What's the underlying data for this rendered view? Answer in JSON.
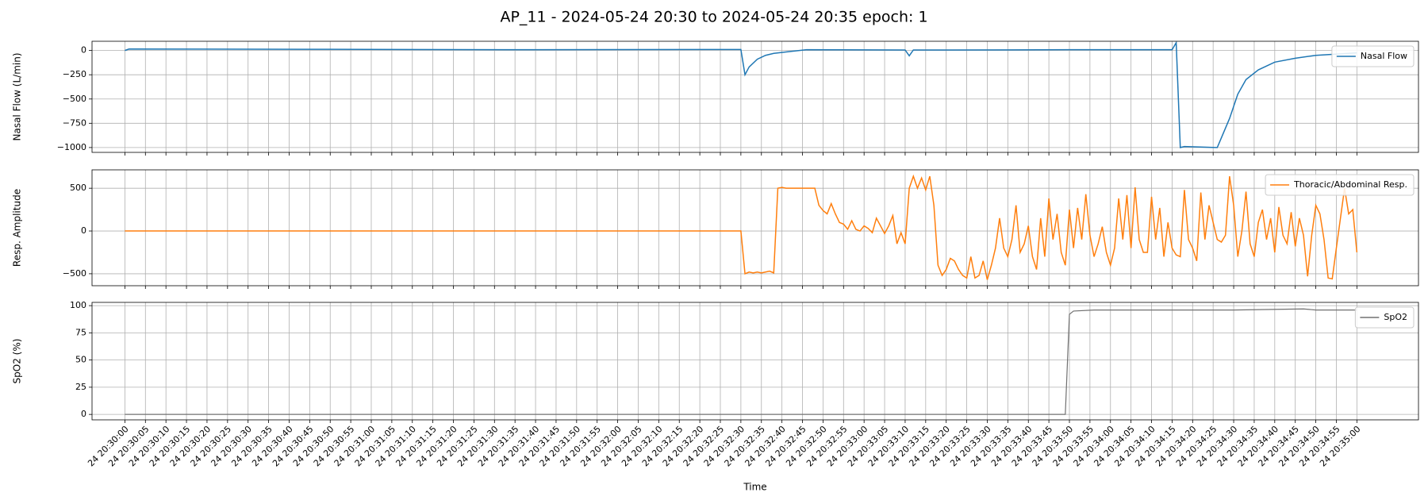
{
  "title": "AP_11 - 2024-05-24 20:30 to 2024-05-24 20:35 epoch: 1",
  "xlabel": "Time",
  "xlim": [
    "24 20:29:52",
    "24 20:35:15"
  ],
  "xticks": [
    "24 20:30:00",
    "24 20:30:05",
    "24 20:30:10",
    "24 20:30:15",
    "24 20:30:20",
    "24 20:30:25",
    "24 20:30:30",
    "24 20:30:35",
    "24 20:30:40",
    "24 20:30:45",
    "24 20:30:50",
    "24 20:30:55",
    "24 20:31:00",
    "24 20:31:05",
    "24 20:31:10",
    "24 20:31:15",
    "24 20:31:20",
    "24 20:31:25",
    "24 20:31:30",
    "24 20:31:35",
    "24 20:31:40",
    "24 20:31:45",
    "24 20:31:50",
    "24 20:31:55",
    "24 20:32:00",
    "24 20:32:05",
    "24 20:32:10",
    "24 20:32:15",
    "24 20:32:20",
    "24 20:32:25",
    "24 20:32:30",
    "24 20:32:35",
    "24 20:32:40",
    "24 20:32:45",
    "24 20:32:50",
    "24 20:32:55",
    "24 20:33:00",
    "24 20:33:05",
    "24 20:33:10",
    "24 20:33:15",
    "24 20:33:20",
    "24 20:33:25",
    "24 20:33:30",
    "24 20:33:35",
    "24 20:33:40",
    "24 20:33:45",
    "24 20:33:50",
    "24 20:33:55",
    "24 20:34:00",
    "24 20:34:05",
    "24 20:34:10",
    "24 20:34:15",
    "24 20:34:20",
    "24 20:34:25",
    "24 20:34:30",
    "24 20:34:35",
    "24 20:34:40",
    "24 20:34:45",
    "24 20:34:50",
    "24 20:34:55",
    "24 20:35:00"
  ],
  "chart_data": [
    {
      "type": "line",
      "ylabel": "Nasal Flow (L/min)",
      "ylim": [
        -1050,
        95
      ],
      "yticks": [
        0,
        {
          "value": -250,
          "label": "−250"
        },
        {
          "value": -500,
          "label": "−500"
        },
        {
          "value": -750,
          "label": "−750"
        },
        {
          "value": -1000,
          "label": "−1000"
        }
      ],
      "grid": true,
      "legend": "upper right",
      "x": [
        "24 20:30:00",
        "24 20:30:01",
        "24 20:30:50",
        "24 20:31:40",
        "24 20:32:30",
        "24 20:32:31",
        "24 20:32:32",
        "24 20:32:34",
        "24 20:32:36",
        "24 20:32:38",
        "24 20:32:42",
        "24 20:32:46",
        "24 20:33:10",
        "24 20:33:11",
        "24 20:33:12",
        "24 20:33:20",
        "24 20:33:50",
        "24 20:34:15",
        "24 20:34:16",
        "24 20:34:17",
        "24 20:34:18",
        "24 20:34:26",
        "24 20:34:27",
        "24 20:34:29",
        "24 20:34:31",
        "24 20:34:33",
        "24 20:34:36",
        "24 20:34:40",
        "24 20:34:45",
        "24 20:34:50",
        "24 20:34:54",
        "24 20:35:00"
      ],
      "series": [
        {
          "name": "Nasal Flow",
          "color": "#1f77b4",
          "values": [
            0,
            15,
            12,
            8,
            10,
            -250,
            -170,
            -90,
            -50,
            -30,
            -10,
            8,
            5,
            -55,
            5,
            5,
            8,
            8,
            80,
            -1000,
            -990,
            -1000,
            -900,
            -700,
            -450,
            -300,
            -200,
            -120,
            -80,
            -50,
            -40,
            -25
          ]
        }
      ]
    },
    {
      "type": "line",
      "ylabel": "Resp. Amplitude",
      "ylim": [
        -640,
        715
      ],
      "yticks": [
        {
          "value": -500,
          "label": "−500"
        },
        0,
        500
      ],
      "grid": true,
      "legend": "upper right",
      "x": [
        "24 20:30:00",
        "24 20:32:30",
        "24 20:32:31",
        "24 20:32:32",
        "24 20:32:33",
        "24 20:32:34",
        "24 20:32:35",
        "24 20:32:36",
        "24 20:32:37",
        "24 20:32:38",
        "24 20:32:39",
        "24 20:32:40",
        "24 20:32:41",
        "24 20:32:42",
        "24 20:32:43",
        "24 20:32:44",
        "24 20:32:45",
        "24 20:32:46",
        "24 20:32:47",
        "24 20:32:48",
        "24 20:32:49",
        "24 20:32:50",
        "24 20:32:51",
        "24 20:32:52",
        "24 20:32:53",
        "24 20:32:54",
        "24 20:32:55",
        "24 20:32:56",
        "24 20:32:57",
        "24 20:32:58",
        "24 20:32:59",
        "24 20:33:00",
        "24 20:33:01",
        "24 20:33:02",
        "24 20:33:03",
        "24 20:33:04",
        "24 20:33:05",
        "24 20:33:06",
        "24 20:33:07",
        "24 20:33:08",
        "24 20:33:09",
        "24 20:33:10",
        "24 20:33:11",
        "24 20:33:12",
        "24 20:33:13",
        "24 20:33:14",
        "24 20:33:15",
        "24 20:33:16",
        "24 20:33:17",
        "24 20:33:18",
        "24 20:33:19",
        "24 20:33:20",
        "24 20:33:21",
        "24 20:33:22",
        "24 20:33:23",
        "24 20:33:24",
        "24 20:33:25",
        "24 20:33:26",
        "24 20:33:27",
        "24 20:33:28",
        "24 20:33:29",
        "24 20:33:30",
        "24 20:33:31",
        "24 20:33:32",
        "24 20:33:33",
        "24 20:33:34",
        "24 20:33:35",
        "24 20:33:36",
        "24 20:33:37",
        "24 20:33:38",
        "24 20:33:39",
        "24 20:33:40",
        "24 20:33:41",
        "24 20:33:42",
        "24 20:33:43",
        "24 20:33:44",
        "24 20:33:45",
        "24 20:33:46",
        "24 20:33:47",
        "24 20:33:48",
        "24 20:33:49",
        "24 20:33:50",
        "24 20:33:51",
        "24 20:33:52",
        "24 20:33:53",
        "24 20:33:54",
        "24 20:33:55",
        "24 20:33:56",
        "24 20:33:57",
        "24 20:33:58",
        "24 20:33:59",
        "24 20:34:00",
        "24 20:34:01",
        "24 20:34:02",
        "24 20:34:03",
        "24 20:34:04",
        "24 20:34:05",
        "24 20:34:06",
        "24 20:34:07",
        "24 20:34:08",
        "24 20:34:09",
        "24 20:34:10",
        "24 20:34:11",
        "24 20:34:12",
        "24 20:34:13",
        "24 20:34:14",
        "24 20:34:15",
        "24 20:34:16",
        "24 20:34:17",
        "24 20:34:18",
        "24 20:34:19",
        "24 20:34:20",
        "24 20:34:21",
        "24 20:34:22",
        "24 20:34:23",
        "24 20:34:24",
        "24 20:34:25",
        "24 20:34:26",
        "24 20:34:27",
        "24 20:34:28",
        "24 20:34:29",
        "24 20:34:30",
        "24 20:34:31",
        "24 20:34:32",
        "24 20:34:33",
        "24 20:34:34",
        "24 20:34:35",
        "24 20:34:36",
        "24 20:34:37",
        "24 20:34:38",
        "24 20:34:39",
        "24 20:34:40",
        "24 20:34:41",
        "24 20:34:42",
        "24 20:34:43",
        "24 20:34:44",
        "24 20:34:45",
        "24 20:34:46",
        "24 20:34:47",
        "24 20:34:48",
        "24 20:34:49",
        "24 20:34:50",
        "24 20:34:51",
        "24 20:34:52",
        "24 20:34:53",
        "24 20:34:54",
        "24 20:34:55",
        "24 20:34:56",
        "24 20:34:57",
        "24 20:34:58",
        "24 20:34:59",
        "24 20:35:00"
      ],
      "series": [
        {
          "name": "Thoracic/Abdominal Resp.",
          "color": "#ff7f0e",
          "values": [
            0,
            0,
            -500,
            -480,
            -490,
            -480,
            -490,
            -480,
            -470,
            -490,
            500,
            510,
            500,
            500,
            500,
            500,
            500,
            500,
            500,
            500,
            300,
            240,
            200,
            320,
            200,
            100,
            80,
            20,
            120,
            20,
            0,
            60,
            30,
            -20,
            150,
            60,
            -30,
            60,
            180,
            -150,
            -20,
            -150,
            500,
            640,
            500,
            620,
            480,
            640,
            300,
            -400,
            -520,
            -450,
            -320,
            -350,
            -450,
            -520,
            -550,
            -300,
            -550,
            -520,
            -350,
            -570,
            -400,
            -200,
            150,
            -200,
            -300,
            -100,
            300,
            -250,
            -150,
            60,
            -300,
            -450,
            150,
            -300,
            380,
            -100,
            200,
            -250,
            -400,
            250,
            -200,
            270,
            -100,
            430,
            -50,
            -300,
            -150,
            50,
            -250,
            -400,
            -200,
            380,
            -100,
            420,
            -200,
            510,
            -100,
            -250,
            -250,
            400,
            -100,
            270,
            -300,
            100,
            -200,
            -280,
            -300,
            480,
            -100,
            -200,
            -350,
            450,
            -100,
            300,
            100,
            -100,
            -130,
            -50,
            640,
            300,
            -300,
            0,
            460,
            -150,
            -300,
            100,
            250,
            -100,
            150,
            -250,
            280,
            -50,
            -150,
            220,
            -180,
            150,
            -50,
            -530,
            -50,
            300,
            200,
            -100,
            -550,
            -560,
            -200,
            150,
            500,
            200,
            250,
            -250
          ]
        }
      ]
    },
    {
      "type": "line",
      "ylabel": "SpO2 (%)",
      "ylim": [
        -5,
        103
      ],
      "yticks": [
        0,
        25,
        50,
        75,
        100
      ],
      "grid": true,
      "legend": "upper right",
      "x": [
        "24 20:30:00",
        "24 20:33:49",
        "24 20:33:50",
        "24 20:33:51",
        "24 20:33:56",
        "24 20:34:30",
        "24 20:34:47",
        "24 20:34:50",
        "24 20:35:00"
      ],
      "series": [
        {
          "name": "SpO2",
          "color": "#707070",
          "values": [
            0,
            0,
            92,
            95,
            96,
            96,
            97,
            96,
            96
          ]
        }
      ]
    }
  ]
}
